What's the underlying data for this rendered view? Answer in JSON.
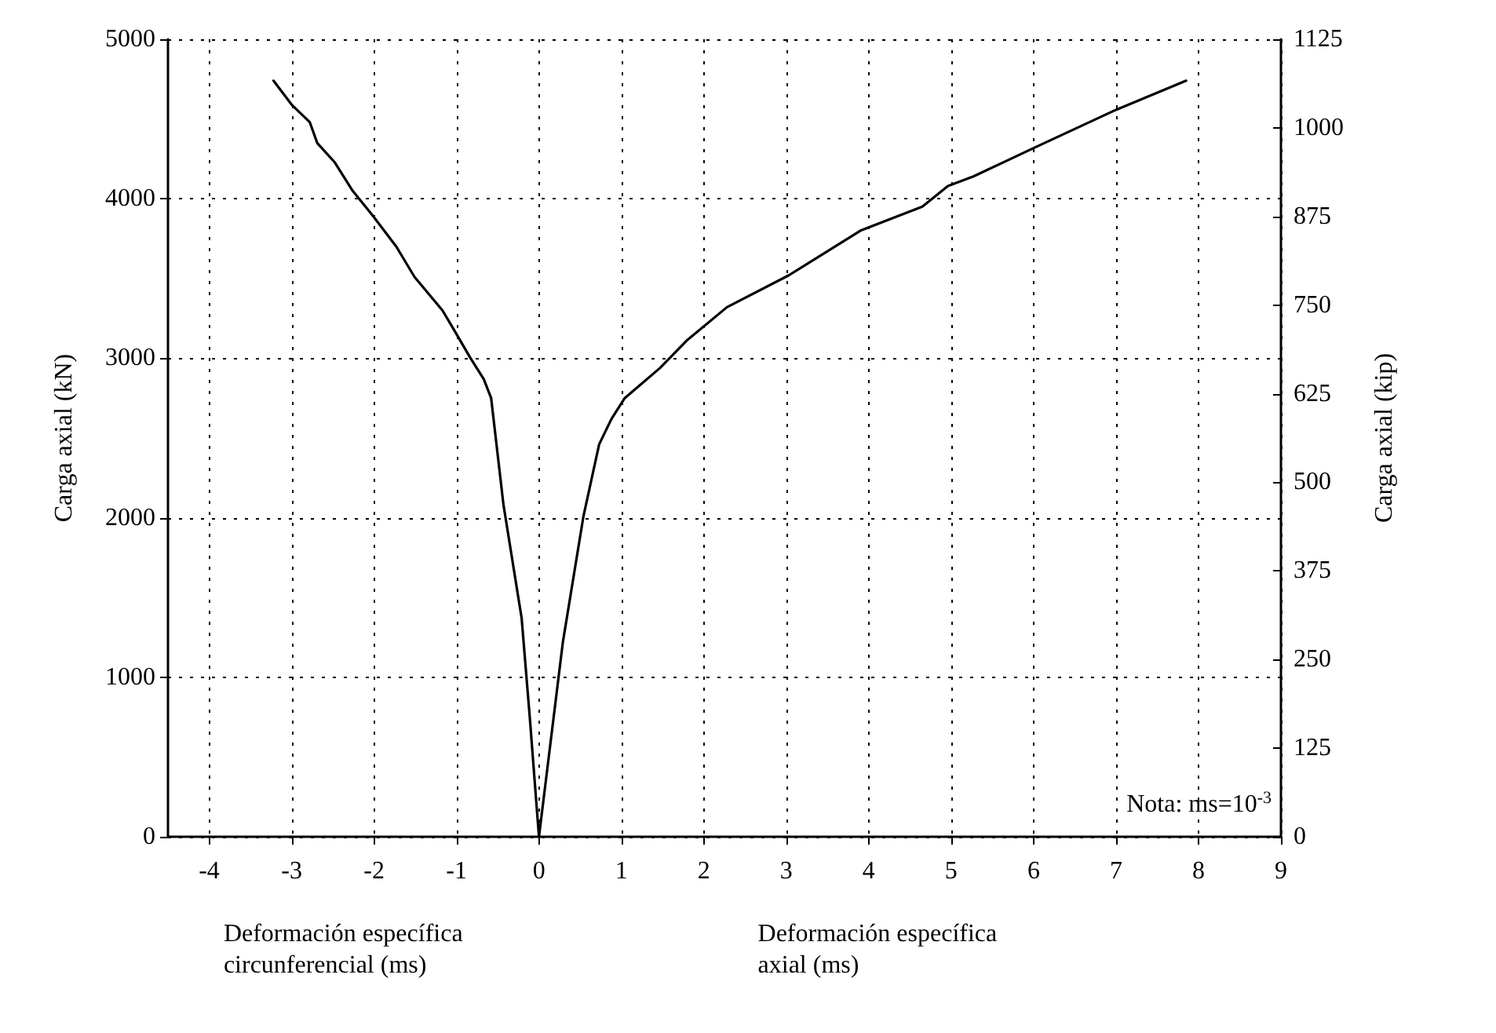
{
  "chart_data": {
    "type": "line",
    "ylabel": "Carga axial (kN)",
    "y2label": "Carga axial (kip)",
    "annotations": [
      "Deformación específica circunferencial (ms)",
      "Deformación específica axial (ms)",
      "Nota: ms=10$^{-3}$"
    ],
    "xlim": [
      -4.5,
      9
    ],
    "xticks": [
      -4,
      -3,
      -2,
      -1,
      0,
      1,
      2,
      3,
      4,
      5,
      6,
      7,
      8,
      9
    ],
    "ylim": [
      0,
      5000
    ],
    "yticks": [
      0,
      1000,
      2000,
      3000,
      4000,
      5000
    ],
    "y2lim": [
      0,
      1125
    ],
    "y2ticks": [
      0,
      125,
      250,
      375,
      500,
      625,
      750,
      875,
      1000,
      1125
    ],
    "grid": true,
    "series": [
      {
        "color": "#000000",
        "x": [
          0,
          -0.11,
          -0.21,
          -0.43,
          -0.58,
          -0.67,
          -0.83,
          -1.01,
          -1.17,
          -1.51,
          -1.73,
          -2.01,
          -2.26,
          -2.48,
          -2.69,
          -2.78,
          -3.0,
          -3.22
        ],
        "values": [
          0,
          740,
          1370,
          2080,
          2750,
          2870,
          3000,
          3160,
          3300,
          3510,
          3700,
          3890,
          4050,
          4230,
          4350,
          4480,
          4590,
          4740
        ]
      },
      {
        "color": "#000000",
        "x": [
          0,
          0.29,
          0.54,
          0.73,
          0.88,
          1.04,
          1.47,
          1.79,
          2.28,
          3.03,
          3.9,
          4.65,
          4.96,
          5.27,
          6.01,
          7.01,
          7.85
        ],
        "values": [
          0,
          1220,
          2010,
          2460,
          2620,
          2750,
          2940,
          3110,
          3320,
          3520,
          3800,
          3950,
          4080,
          4140,
          4320,
          4560,
          4740
        ]
      }
    ]
  }
}
